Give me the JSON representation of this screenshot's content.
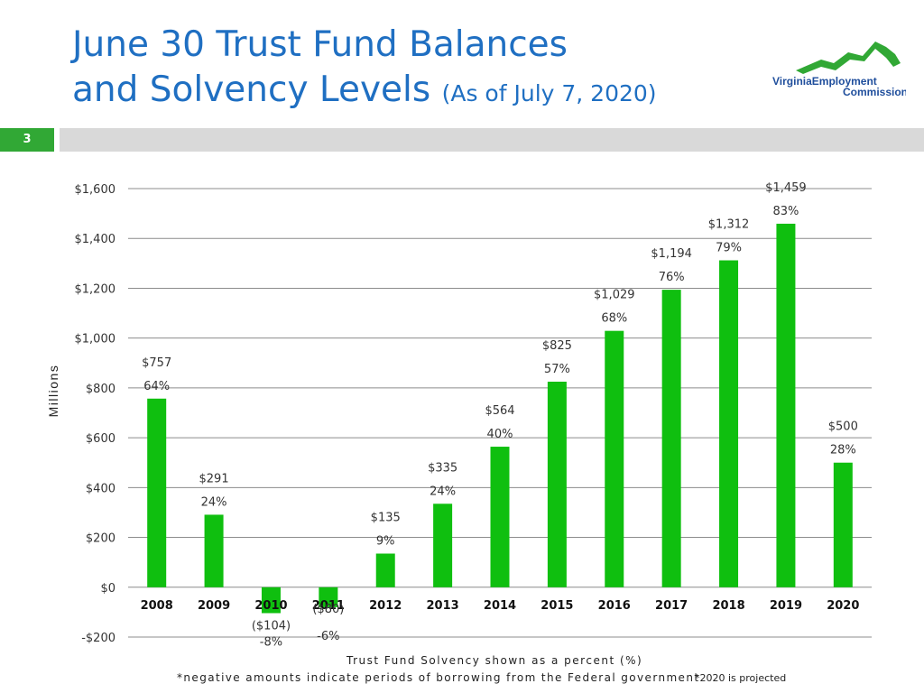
{
  "title": {
    "line1": "June 30 Trust Fund Balances",
    "line2": "and Solvency Levels",
    "subtitle": "(As of July 7, 2020)"
  },
  "slide_number": "3",
  "logo": {
    "line1": "VirginiaEmployment",
    "line2": "Commission",
    "accent_color": "#31a835",
    "text_color": "#1f4e9c"
  },
  "colors": {
    "title": "#1f6fc2",
    "bar": "#0fbf0f",
    "accent": "#31a835"
  },
  "chart_data": {
    "type": "bar",
    "ylabel": "Millions",
    "ylim": [
      -200,
      1600
    ],
    "yticks": [
      -200,
      0,
      200,
      400,
      600,
      800,
      1000,
      1200,
      1400,
      1600
    ],
    "ytick_labels": [
      "-$200",
      "$0",
      "$200",
      "$400",
      "$600",
      "$800",
      "$1,000",
      "$1,200",
      "$1,400",
      "$1,600"
    ],
    "grid": true,
    "categories": [
      "2008",
      "2009",
      "2010",
      "2011",
      "2012",
      "2013",
      "2014",
      "2015",
      "2016",
      "2017",
      "2018",
      "2019",
      "2020"
    ],
    "values": [
      757,
      291,
      -104,
      -80,
      135,
      335,
      564,
      825,
      1029,
      1194,
      1312,
      1459,
      500
    ],
    "value_labels": [
      "$757",
      "$291",
      "($104)",
      "($80)",
      "$135",
      "$335",
      "$564",
      "$825",
      "$1,029",
      "$1,194",
      "$1,312",
      "$1,459",
      "$500"
    ],
    "solvency_labels": [
      "64%",
      "24%",
      "-8%",
      "-6%",
      "9%",
      "24%",
      "40%",
      "57%",
      "68%",
      "76%",
      "79%",
      "83%",
      "28%"
    ]
  },
  "footnotes": {
    "line1": "Trust Fund Solvency shown as a percent (%)",
    "line2": "*negative amounts indicate periods of borrowing from the Federal government",
    "line3": "*2020 is projected"
  }
}
